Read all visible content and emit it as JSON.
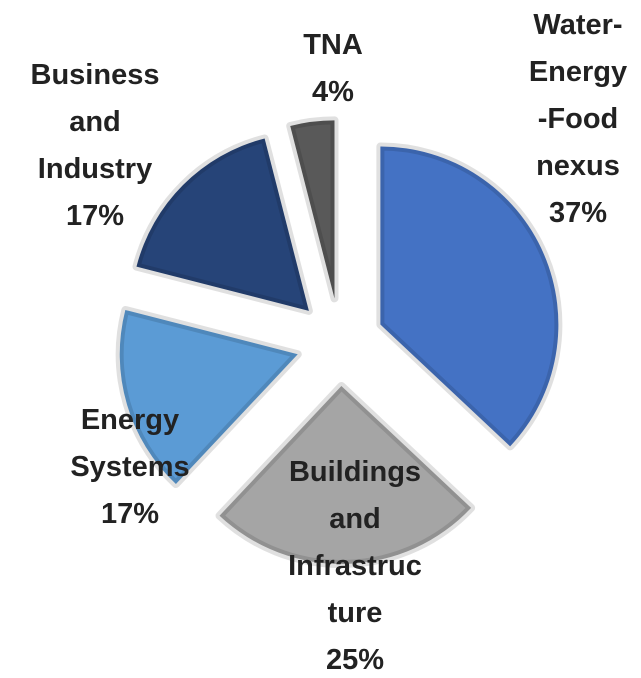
{
  "chart_data": {
    "type": "pie",
    "categories": [
      "Water-\nEnergy\n-Food\nnexus",
      "Buildings\nand\nInfrastruc\nture",
      "Energy\nSystems",
      "Business\nand\nIndustry",
      "TNA"
    ],
    "values": [
      37,
      25,
      17,
      17,
      4
    ],
    "value_labels": [
      "37%",
      "25%",
      "17%",
      "17%",
      "4%"
    ],
    "colors": [
      "#4472c4",
      "#a5a5a5",
      "#5b9bd5",
      "#264478",
      "#595959"
    ],
    "exploded": true
  }
}
